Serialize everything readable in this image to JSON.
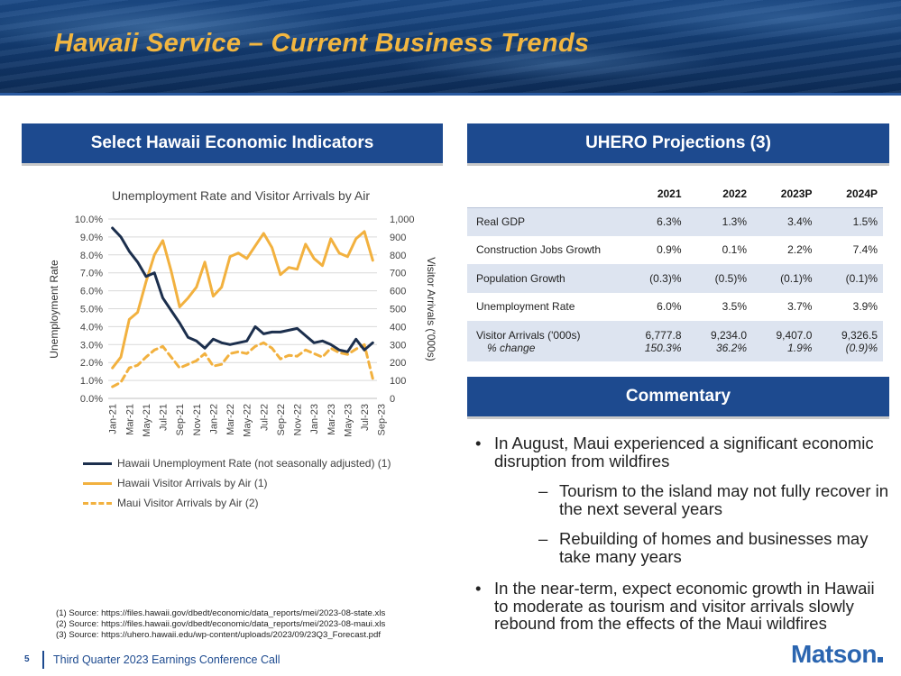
{
  "header": {
    "title": "Hawaii Service – Current Business Trends"
  },
  "left_section": {
    "title": "Select Hawaii Economic Indicators"
  },
  "right_section": {
    "title": "UHERO Projections (3)"
  },
  "commentary_section": {
    "title": "Commentary"
  },
  "chart_data": {
    "type": "line",
    "title": "Unemployment Rate and Visitor Arrivals by Air",
    "ylabel": "Unemployment Rate",
    "y2label": "Visitor Arrivals ('000s)",
    "ylim": [
      0,
      10
    ],
    "y2lim": [
      0,
      1000
    ],
    "yticks": [
      "0.0%",
      "1.0%",
      "2.0%",
      "3.0%",
      "4.0%",
      "5.0%",
      "6.0%",
      "7.0%",
      "8.0%",
      "9.0%",
      "10.0%"
    ],
    "y2ticks": [
      "0",
      "100",
      "200",
      "300",
      "400",
      "500",
      "600",
      "700",
      "800",
      "900",
      "1,000"
    ],
    "x_tick_labels": [
      "Jan-21",
      "Mar-21",
      "May-21",
      "Jul-21",
      "Sep-21",
      "Nov-21",
      "Jan-22",
      "Mar-22",
      "May-22",
      "Jul-22",
      "Sep-22",
      "Nov-22",
      "Jan-23",
      "Mar-23",
      "May-23",
      "Jul-23",
      "Sep-23"
    ],
    "series": [
      {
        "name": "Hawaii Unemployment Rate (not seasonally adjusted) (1)",
        "axis": "left",
        "color": "#1c2f4d",
        "style": "solid",
        "values": [
          9.5,
          9.0,
          8.2,
          7.6,
          6.8,
          7.0,
          5.6,
          4.9,
          4.2,
          3.4,
          3.2,
          2.8,
          3.3,
          3.1,
          3.0,
          3.1,
          3.2,
          4.0,
          3.6,
          3.7,
          3.7,
          3.8,
          3.9,
          3.5,
          3.1,
          3.2,
          3.0,
          2.7,
          2.6,
          3.3,
          2.7,
          3.1
        ]
      },
      {
        "name": "Hawaii Visitor Arrivals by Air (1)",
        "axis": "right",
        "color": "#f2b13f",
        "style": "solid",
        "values": [
          170,
          230,
          440,
          480,
          650,
          800,
          880,
          710,
          510,
          560,
          620,
          760,
          570,
          620,
          790,
          810,
          780,
          850,
          920,
          840,
          690,
          730,
          720,
          860,
          780,
          740,
          890,
          810,
          790,
          890,
          930,
          770
        ]
      },
      {
        "name": "Maui Visitor Arrivals by Air (2)",
        "axis": "right",
        "color": "#f2b13f",
        "style": "dashed",
        "values": [
          65,
          90,
          170,
          185,
          230,
          270,
          290,
          230,
          170,
          190,
          210,
          250,
          180,
          190,
          250,
          260,
          250,
          290,
          310,
          280,
          220,
          240,
          235,
          270,
          250,
          230,
          280,
          255,
          245,
          275,
          300,
          110
        ]
      }
    ]
  },
  "table": {
    "columns": [
      "2021",
      "2022",
      "2023P",
      "2024P"
    ],
    "rows": [
      {
        "label": "Real GDP",
        "values": [
          "6.3%",
          "1.3%",
          "3.4%",
          "1.5%"
        ]
      },
      {
        "label": "Construction Jobs Growth",
        "values": [
          "0.9%",
          "0.1%",
          "2.2%",
          "7.4%"
        ]
      },
      {
        "label": "Population Growth",
        "values": [
          "(0.3)%",
          "(0.5)%",
          "(0.1)%",
          "(0.1)%"
        ]
      },
      {
        "label": "Unemployment Rate",
        "values": [
          "6.0%",
          "3.5%",
          "3.7%",
          "3.9%"
        ]
      },
      {
        "label": "Visitor Arrivals  ('000s)",
        "values": [
          "6,777.8",
          "9,234.0",
          "9,407.0",
          "9,326.5"
        ],
        "sublabel": "% change",
        "subvalues": [
          "150.3%",
          "36.2%",
          "1.9%",
          "(0.9)%"
        ]
      }
    ]
  },
  "commentary": {
    "bullet1": "In August, Maui experienced a significant economic disruption from wildfires",
    "sub1": "Tourism to the island may not fully recover in the next several years",
    "sub2": "Rebuilding of homes and businesses may take many years",
    "bullet2": "In the near-term, expect economic growth in Hawaii to moderate as tourism and visitor arrivals slowly rebound from the effects of the Maui wildfires"
  },
  "footnotes": [
    "(1)   Source: https://files.hawaii.gov/dbedt/economic/data_reports/mei/2023-08-state.xls",
    "(2)   Source: https://files.hawaii.gov/dbedt/economic/data_reports/mei/2023-08-maui.xls",
    "(3)   Source: https://uhero.hawaii.edu/wp-content/uploads/2023/09/23Q3_Forecast.pdf"
  ],
  "footer": {
    "page": "5",
    "text": "Third Quarter 2023 Earnings Conference Call",
    "logo": "Matson"
  }
}
